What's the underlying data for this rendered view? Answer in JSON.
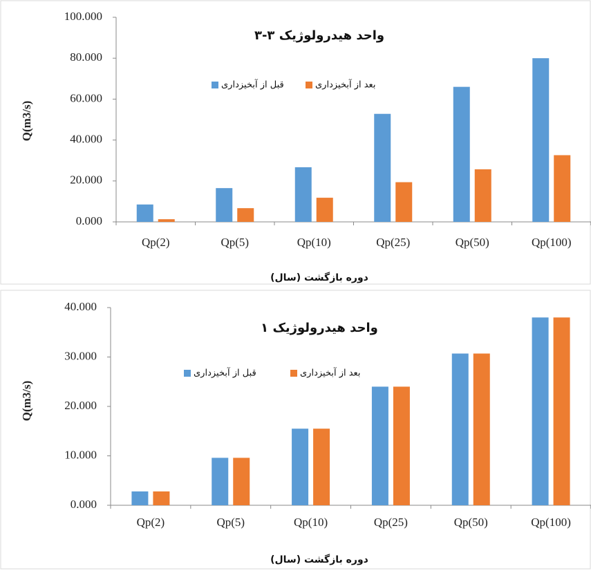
{
  "chart_data": [
    {
      "type": "bar",
      "title": "واحد هیدرولوژیک ۳-۳",
      "x_label": "دوره بازگشت (سال)",
      "y_label": "Q(m3/s)",
      "categories": [
        "Qp(2)",
        "Qp(5)",
        "Qp(10)",
        "Qp(25)",
        "Qp(50)",
        "Qp(100)"
      ],
      "series": [
        {
          "name": "قبل از آبخیزداری",
          "color": "#5b9bd5",
          "values": [
            8.5,
            16.5,
            26.7,
            52.8,
            66.0,
            80.0
          ]
        },
        {
          "name": "بعد از آبخیزداری",
          "color": "#ed7d31",
          "values": [
            1.3,
            6.7,
            11.8,
            19.4,
            25.7,
            32.6
          ]
        }
      ],
      "ylim": [
        0,
        100
      ],
      "yticks": [
        {
          "value": 0,
          "label": "0.000"
        },
        {
          "value": 20,
          "label": "20.000"
        },
        {
          "value": 40,
          "label": "40.000"
        },
        {
          "value": 60,
          "label": "60.000"
        },
        {
          "value": 80,
          "label": "80.000"
        },
        {
          "value": 100,
          "label": "100.000"
        }
      ]
    },
    {
      "type": "bar",
      "title": "واحد هیدرولوژیک ۱",
      "x_label": "دوره بازگشت (سال)",
      "y_label": "Q(m3/s)",
      "categories": [
        "Qp(2)",
        "Qp(5)",
        "Qp(10)",
        "Qp(25)",
        "Qp(50)",
        "Qp(100)"
      ],
      "series": [
        {
          "name": "قبل از آبخیزداری",
          "color": "#5b9bd5",
          "values": [
            2.8,
            9.6,
            15.5,
            24.0,
            30.7,
            38.0
          ]
        },
        {
          "name": "بعد از آبخیزداری",
          "color": "#ed7d31",
          "values": [
            2.8,
            9.6,
            15.5,
            24.0,
            30.7,
            38.0
          ]
        }
      ],
      "ylim": [
        0,
        40
      ],
      "yticks": [
        {
          "value": 0,
          "label": "0.000"
        },
        {
          "value": 10,
          "label": "10.000"
        },
        {
          "value": 20,
          "label": "20.000"
        },
        {
          "value": 30,
          "label": "30.000"
        },
        {
          "value": 40,
          "label": "40.000"
        }
      ]
    }
  ]
}
